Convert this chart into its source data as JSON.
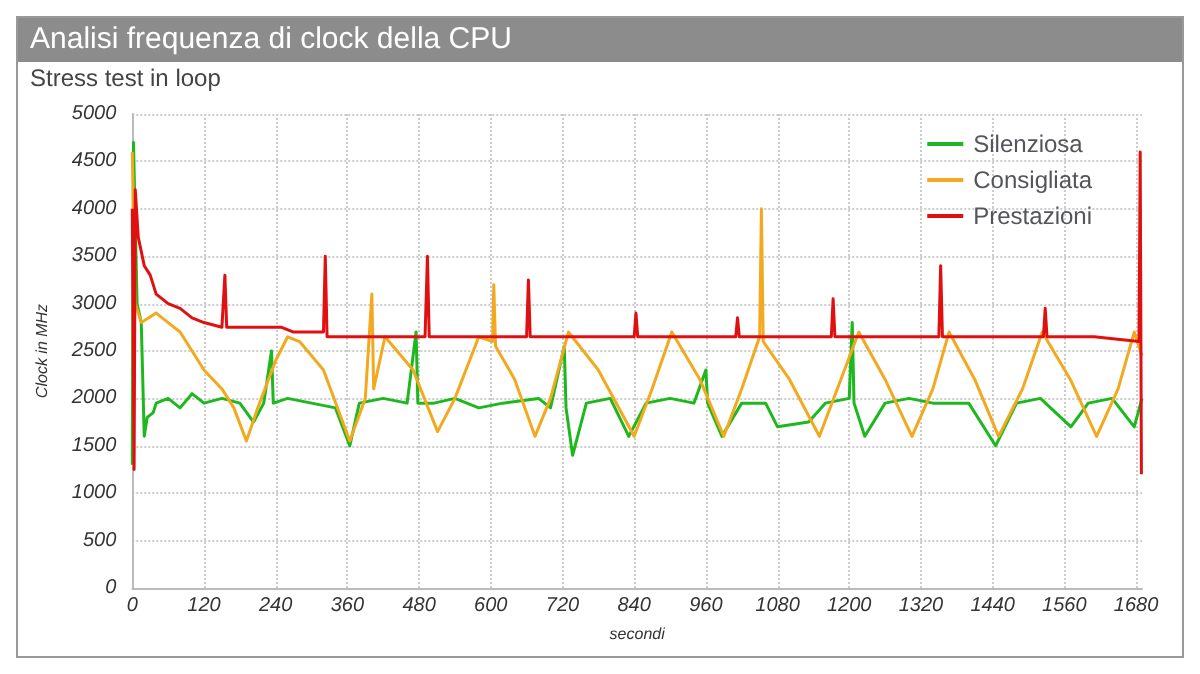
{
  "chart_data": {
    "type": "line",
    "title": "Analisi frequenza di clock della CPU",
    "subtitle": "Stress test in loop",
    "xlabel": "secondi",
    "ylabel": "Clock in MHz",
    "xlim": [
      0,
      1690
    ],
    "xticks": [
      0,
      120,
      240,
      360,
      480,
      600,
      720,
      840,
      960,
      1080,
      1200,
      1320,
      1440,
      1560,
      1680
    ],
    "ylim": [
      0,
      5000
    ],
    "yticks": [
      0,
      500,
      1000,
      1500,
      2000,
      2500,
      3000,
      3500,
      4000,
      4500,
      5000
    ],
    "grid": true,
    "legend": "top right",
    "marker": "none",
    "line_style": "solid",
    "series": [
      {
        "name": "Silenziosa",
        "color": "#1db81d",
        "x": [
          0,
          2,
          8,
          15,
          20,
          25,
          35,
          40,
          60,
          80,
          100,
          120,
          150,
          180,
          203,
          220,
          233,
          236,
          260,
          300,
          340,
          364,
          380,
          420,
          460,
          475,
          478,
          505,
          540,
          580,
          620,
          680,
          700,
          723,
          726,
          737,
          760,
          800,
          831,
          860,
          900,
          940,
          960,
          963,
          987,
          1020,
          1060,
          1080,
          1132,
          1160,
          1200,
          1205,
          1208,
          1226,
          1260,
          1300,
          1340,
          1400,
          1445,
          1480,
          1520,
          1571,
          1600,
          1640,
          1677,
          1690
        ],
        "values": [
          1300,
          4700,
          3000,
          2800,
          1600,
          1800,
          1850,
          1950,
          2000,
          1900,
          2050,
          1950,
          2000,
          1950,
          1750,
          1950,
          2500,
          1950,
          2000,
          1950,
          1900,
          1500,
          1950,
          2000,
          1950,
          2700,
          1950,
          1950,
          2000,
          1900,
          1950,
          2000,
          1900,
          2550,
          1900,
          1400,
          1950,
          2000,
          1600,
          1950,
          2000,
          1950,
          2300,
          1950,
          1600,
          1950,
          1950,
          1700,
          1750,
          1950,
          2000,
          2800,
          1950,
          1600,
          1950,
          2000,
          1950,
          1950,
          1500,
          1950,
          2000,
          1700,
          1950,
          2000,
          1700,
          2000
        ]
      },
      {
        "name": "Consigliata",
        "color": "#f2a91f",
        "x": [
          0,
          5,
          15,
          40,
          60,
          80,
          100,
          120,
          150,
          170,
          191,
          210,
          240,
          260,
          280,
          320,
          364,
          390,
          401,
          404,
          423,
          470,
          511,
          540,
          580,
          603,
          605,
          608,
          640,
          674,
          700,
          730,
          780,
          840,
          870,
          903,
          950,
          990,
          1020,
          1050,
          1053,
          1056,
          1100,
          1150,
          1180,
          1216,
          1260,
          1305,
          1340,
          1367,
          1410,
          1450,
          1490,
          1523,
          1570,
          1614,
          1650,
          1677,
          1690
        ],
        "values": [
          4600,
          3000,
          2800,
          2900,
          2800,
          2700,
          2500,
          2300,
          2100,
          1900,
          1550,
          1900,
          2400,
          2650,
          2600,
          2300,
          1550,
          2000,
          3100,
          2100,
          2650,
          2300,
          1650,
          2000,
          2650,
          2600,
          3200,
          2550,
          2200,
          1600,
          2000,
          2700,
          2300,
          1600,
          2100,
          2700,
          2200,
          1600,
          2100,
          2650,
          4000,
          2600,
          2200,
          1600,
          2100,
          2700,
          2200,
          1600,
          2100,
          2700,
          2200,
          1600,
          2100,
          2700,
          2200,
          1600,
          2100,
          2700,
          2450
        ]
      },
      {
        "name": "Prestazioni",
        "color": "#e01010",
        "x": [
          0,
          3,
          5,
          10,
          20,
          30,
          40,
          60,
          80,
          100,
          120,
          150,
          155,
          158,
          200,
          250,
          270,
          320,
          323,
          326,
          400,
          490,
          494,
          497,
          580,
          660,
          663,
          666,
          760,
          840,
          843,
          846,
          930,
          1010,
          1013,
          1016,
          1090,
          1170,
          1173,
          1176,
          1260,
          1350,
          1353,
          1356,
          1440,
          1525,
          1528,
          1531,
          1610,
          1685,
          1687,
          1689
        ],
        "values": [
          4000,
          1250,
          4200,
          3700,
          3400,
          3300,
          3100,
          3000,
          2950,
          2850,
          2800,
          2750,
          3300,
          2750,
          2750,
          2750,
          2700,
          2700,
          3500,
          2650,
          2650,
          2650,
          3500,
          2650,
          2650,
          2650,
          3250,
          2650,
          2650,
          2650,
          2900,
          2650,
          2650,
          2650,
          2850,
          2650,
          2650,
          2650,
          3050,
          2650,
          2650,
          2650,
          3400,
          2650,
          2650,
          2650,
          2950,
          2650,
          2650,
          2600,
          4600,
          1200
        ]
      }
    ]
  }
}
